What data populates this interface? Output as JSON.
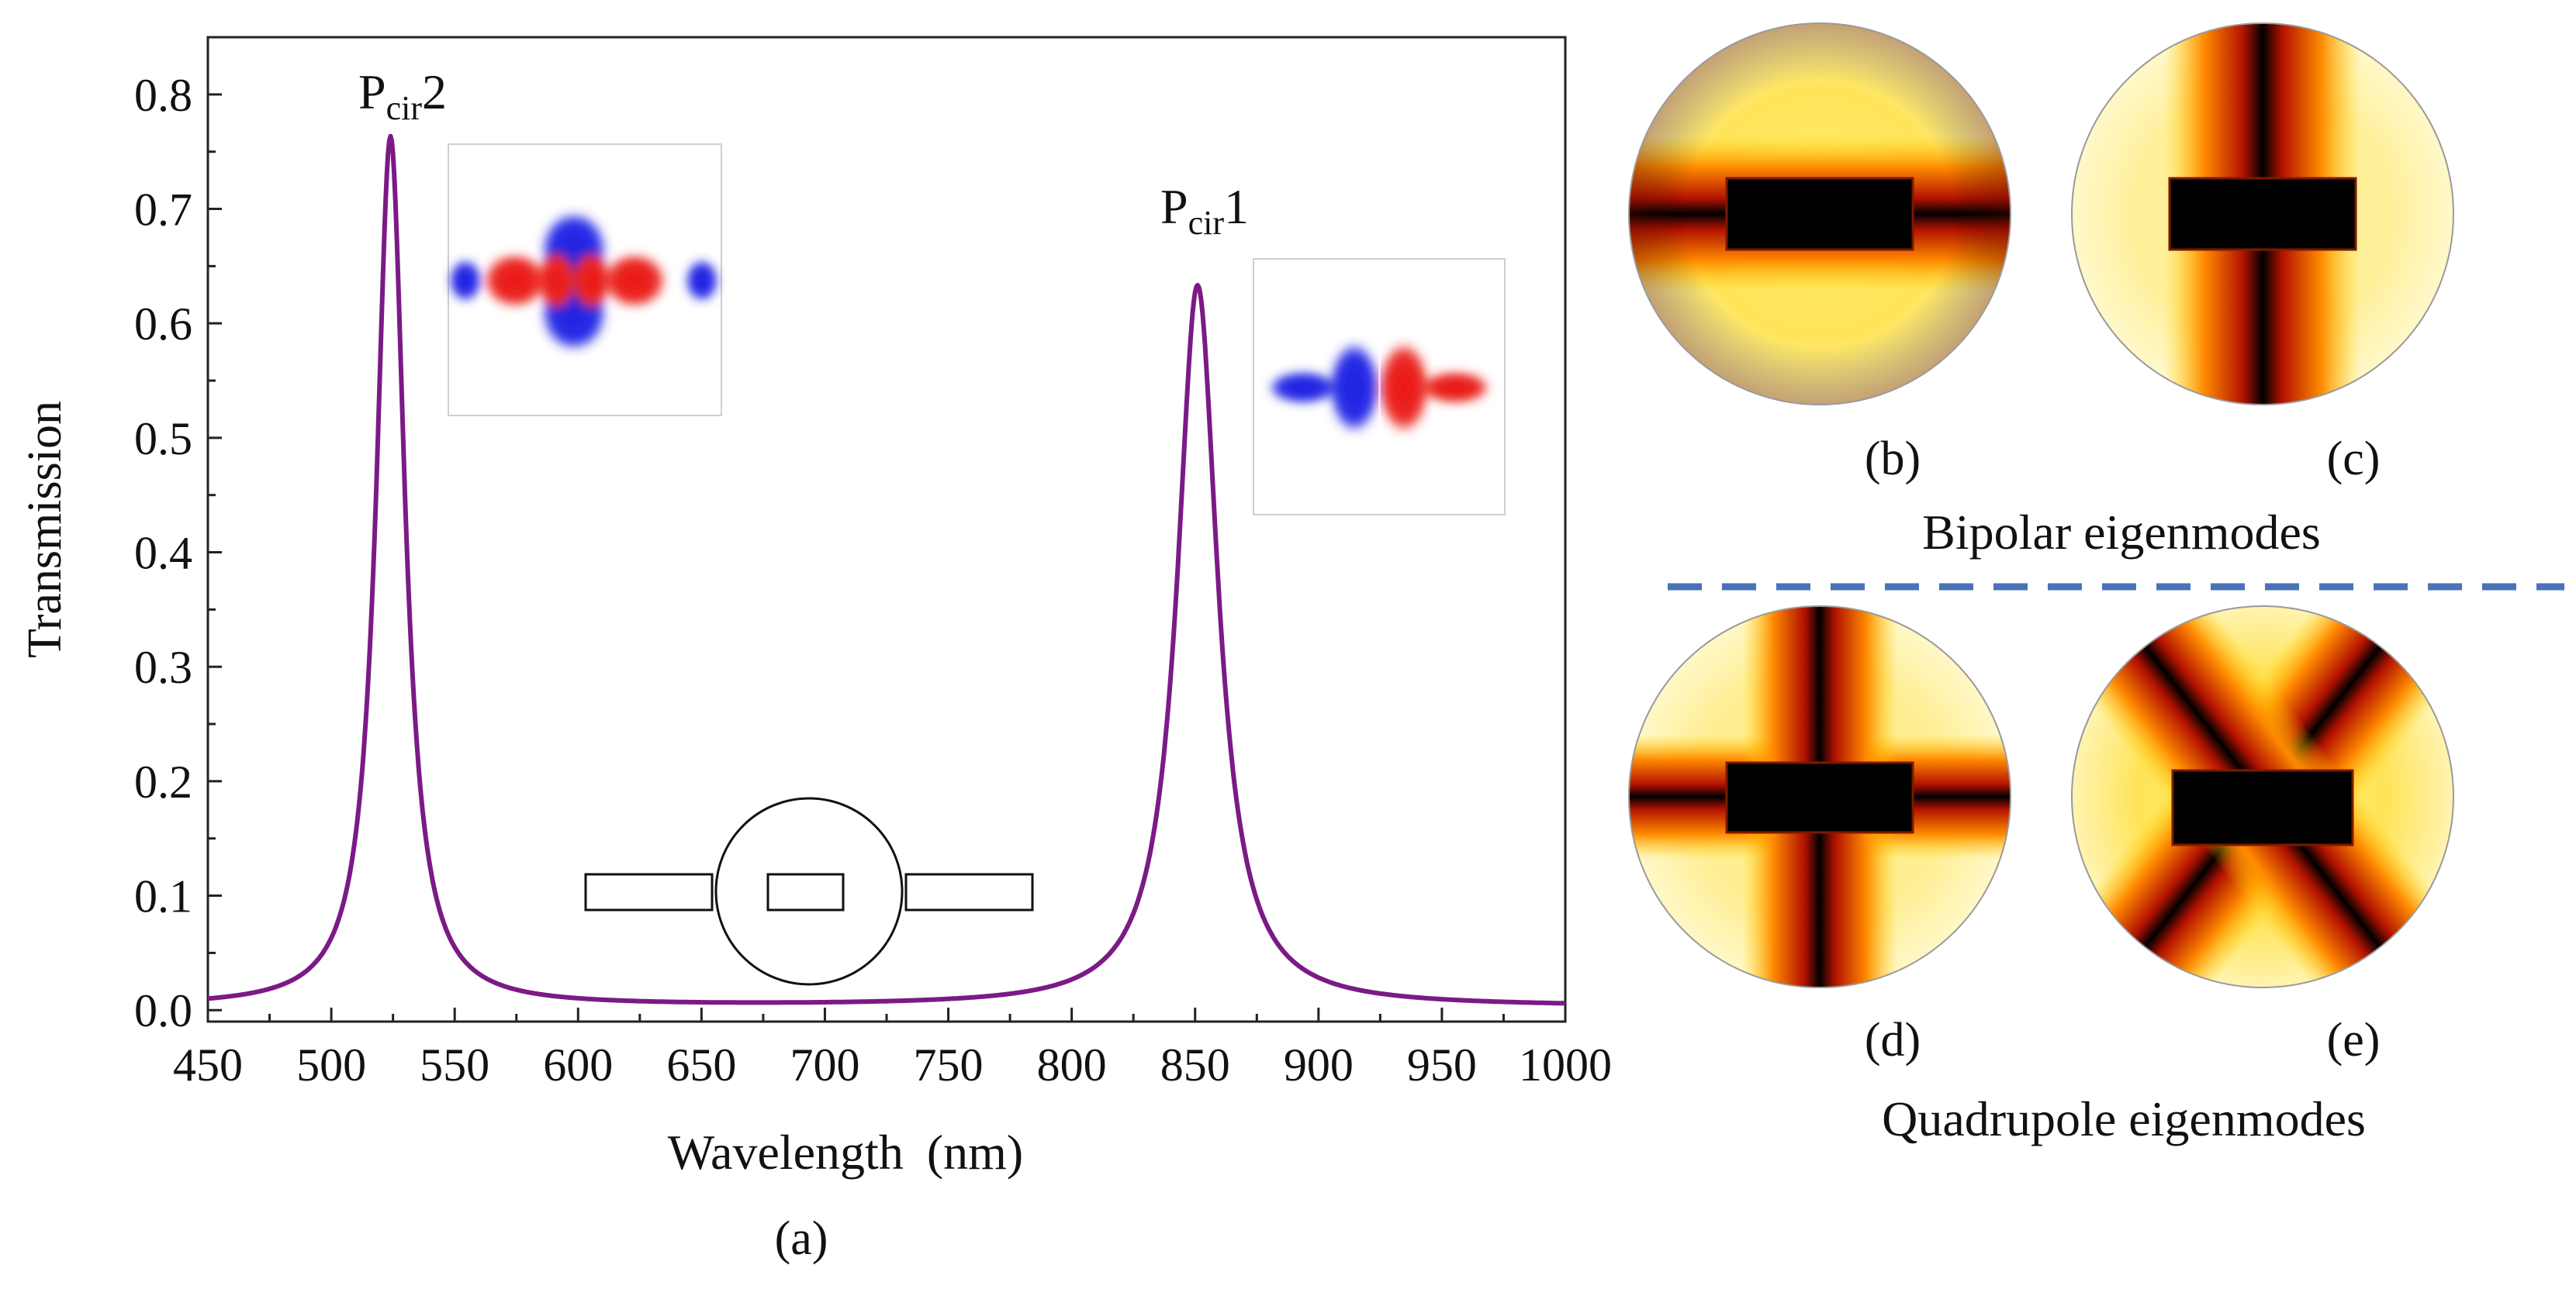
{
  "chart_data": {
    "type": "line",
    "panel_label": "(a)",
    "xlabel": "Wavelength (nm)",
    "ylabel": "Transmission",
    "xlim": [
      450,
      1000
    ],
    "ylim": [
      -0.01,
      0.85
    ],
    "xticks": [
      "450",
      "500",
      "550",
      "600",
      "650",
      "700",
      "750",
      "800",
      "850",
      "900",
      "950",
      "1000"
    ],
    "yticks": [
      "0.0",
      "0.1",
      "0.2",
      "0.3",
      "0.4",
      "0.5",
      "0.6",
      "0.7",
      "0.8"
    ],
    "line_color": "#7b1a86",
    "series": [
      {
        "name": "Transmission",
        "peaks": [
          {
            "label": "Pcir2",
            "wavelength_nm": 524,
            "transmission": 0.76,
            "fwhm_nm": 14
          },
          {
            "label": "Pcir1",
            "wavelength_nm": 851,
            "transmission": 0.63,
            "fwhm_nm": 20
          }
        ],
        "baseline": 0.003
      }
    ],
    "annotations": [
      {
        "main": "P",
        "sub": "cir",
        "suffix": "2"
      },
      {
        "main": "P",
        "sub": "cir",
        "suffix": "1"
      }
    ]
  },
  "insets": {
    "mode_pcir2": {
      "positive_color": "#e8141b",
      "negative_color": "#1f22e0"
    },
    "mode_pcir1": {
      "positive_color": "#e8141b",
      "negative_color": "#1f22e0"
    }
  },
  "eigenmodes": {
    "labels": [
      "(b)",
      "(c)",
      "(d)",
      "(e)"
    ],
    "bipolar_title": "Bipolar eigenmodes",
    "quadrupole_title": "Quadrupole eigenmodes",
    "separator_color": "#4a72b8",
    "heat_colors": [
      "#fffde6",
      "#ffd000",
      "#ff8a00",
      "#b31200",
      "#000000"
    ]
  }
}
